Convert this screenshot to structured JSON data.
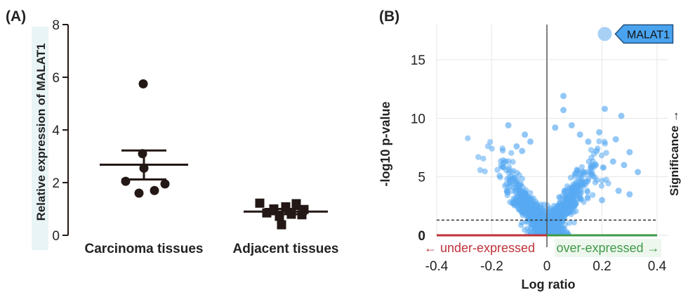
{
  "panels": {
    "a_label": "(A)",
    "b_label": "(B)"
  },
  "chart_data": [
    {
      "type": "scatter",
      "ylabel": "Relative expression of MALAT1",
      "ylim": [
        0,
        8
      ],
      "yticks": [
        "0",
        "2",
        "4",
        "6",
        "8"
      ],
      "categories": [
        "Carcinoma tissues",
        "Adjacent tissues"
      ],
      "series": [
        {
          "category": "Carcinoma tissues",
          "marker": "circle",
          "points": [
            5.75,
            3.1,
            2.55,
            2.05,
            1.95,
            1.7,
            1.6
          ],
          "mean": 2.68,
          "sem_upper": 3.22,
          "sem_lower": 2.12
        },
        {
          "category": "Adjacent tissues",
          "marker": "square",
          "points": [
            1.22,
            1.2,
            1.08,
            1.0,
            0.98,
            0.85,
            0.8,
            0.78,
            0.72,
            0.4
          ],
          "mean": 0.9,
          "sem_upper": 1.0,
          "sem_lower": 0.8
        }
      ],
      "color": "#231815",
      "label_bg": "#e9f4f6"
    },
    {
      "type": "scatter",
      "xlabel": "Log ratio",
      "ylabel": "-log10 p-value",
      "xlim": [
        -0.4,
        0.4
      ],
      "ylim": [
        0,
        18
      ],
      "xticks": [
        "-0.4",
        "-0.2",
        "0",
        "0.2",
        "0.4"
      ],
      "yticks": [
        "0",
        "5",
        "10",
        "15"
      ],
      "grid": true,
      "point_color": "#58a9f2",
      "threshold_line": 1.3,
      "highlight": {
        "label": "MALAT1",
        "x": 0.21,
        "y": 17.2
      },
      "side_label": "Significance →",
      "under_label": "← under-expressed",
      "over_label": "over-expressed →",
      "under_color": "#c0323a",
      "over_color": "#3f9a48",
      "outliers": [
        {
          "x": -0.14,
          "y": 9.4
        },
        {
          "x": -0.08,
          "y": 8.6
        },
        {
          "x": 0.03,
          "y": 9.2
        },
        {
          "x": 0.06,
          "y": 11.9
        },
        {
          "x": 0.06,
          "y": 10.7
        },
        {
          "x": 0.09,
          "y": 9.4
        },
        {
          "x": 0.21,
          "y": 10.8
        },
        {
          "x": 0.27,
          "y": 10.2
        },
        {
          "x": 0.19,
          "y": 8.8
        },
        {
          "x": 0.3,
          "y": 7.1
        },
        {
          "x": -0.15,
          "y": 6.3
        },
        {
          "x": -0.09,
          "y": 7.2
        },
        {
          "x": 0.12,
          "y": 8.6
        },
        {
          "x": 0.24,
          "y": 6.3
        },
        {
          "x": 0.28,
          "y": 6.0
        },
        {
          "x": 0.15,
          "y": 8.0
        },
        {
          "x": -0.11,
          "y": 7.6
        },
        {
          "x": 0.25,
          "y": 8.2
        },
        {
          "x": 0.33,
          "y": 5.4
        },
        {
          "x": 0.3,
          "y": 3.5
        },
        {
          "x": -0.06,
          "y": 8.0
        },
        {
          "x": 0.2,
          "y": 3.0
        },
        {
          "x": 0.26,
          "y": 3.8
        },
        {
          "x": 0.18,
          "y": 7.2
        }
      ]
    }
  ]
}
